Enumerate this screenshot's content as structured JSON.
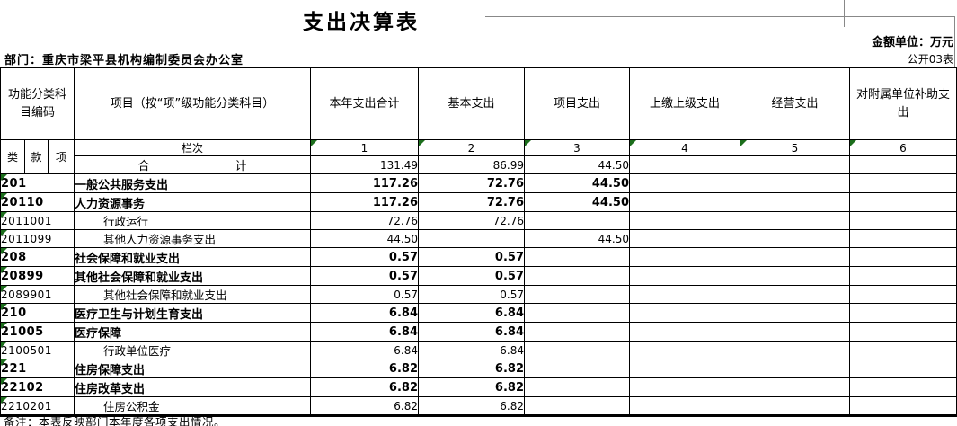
{
  "meta": {
    "title": "支出决算表",
    "unit_note": "金额单位：万元",
    "department_line": "部门：重庆市梁平县机构编制委员会办公室",
    "sheet_label": "公开03表",
    "footnote": "备注：本表反映部门本年度各项支出情况。"
  },
  "table": {
    "header": {
      "code_group": "功能分类科目编码",
      "code_cols": [
        "类",
        "款",
        "项"
      ],
      "item_col": "项目（按“项”级功能分类科目）",
      "amount_cols": [
        "本年支出合计",
        "基本支出",
        "项目支出",
        "上缴上级支出",
        "经营支出",
        "对附属单位补助支出"
      ],
      "lanci_label": "栏次",
      "col_numbers": [
        "1",
        "2",
        "3",
        "4",
        "5",
        "6"
      ]
    },
    "total_row": {
      "label_parts": [
        "合",
        "计"
      ],
      "values": [
        "131.49",
        "86.99",
        "44.50",
        "",
        "",
        ""
      ]
    },
    "rows": [
      {
        "code": "201",
        "name": "一般公共服务支出",
        "bold": true,
        "values": [
          "117.26",
          "72.76",
          "44.50",
          "",
          "",
          ""
        ]
      },
      {
        "code": "20110",
        "name": "人力资源事务",
        "bold": true,
        "values": [
          "117.26",
          "72.76",
          "44.50",
          "",
          "",
          ""
        ]
      },
      {
        "code": "2011001",
        "name": "行政运行",
        "bold": false,
        "values": [
          "72.76",
          "72.76",
          "",
          "",
          "",
          ""
        ]
      },
      {
        "code": "2011099",
        "name": "其他人力资源事务支出",
        "bold": false,
        "values": [
          "44.50",
          "",
          "44.50",
          "",
          "",
          ""
        ]
      },
      {
        "code": "208",
        "name": "社会保障和就业支出",
        "bold": true,
        "values": [
          "0.57",
          "0.57",
          "",
          "",
          "",
          ""
        ]
      },
      {
        "code": "20899",
        "name": "其他社会保障和就业支出",
        "bold": true,
        "values": [
          "0.57",
          "0.57",
          "",
          "",
          "",
          ""
        ]
      },
      {
        "code": "2089901",
        "name": "其他社会保障和就业支出",
        "bold": false,
        "values": [
          "0.57",
          "0.57",
          "",
          "",
          "",
          ""
        ]
      },
      {
        "code": "210",
        "name": "医疗卫生与计划生育支出",
        "bold": true,
        "values": [
          "6.84",
          "6.84",
          "",
          "",
          "",
          ""
        ]
      },
      {
        "code": "21005",
        "name": "医疗保障",
        "bold": true,
        "values": [
          "6.84",
          "6.84",
          "",
          "",
          "",
          ""
        ]
      },
      {
        "code": "2100501",
        "name": "行政单位医疗",
        "bold": false,
        "values": [
          "6.84",
          "6.84",
          "",
          "",
          "",
          ""
        ]
      },
      {
        "code": "221",
        "name": "住房保障支出",
        "bold": true,
        "values": [
          "6.82",
          "6.82",
          "",
          "",
          "",
          ""
        ]
      },
      {
        "code": "22102",
        "name": "住房改革支出",
        "bold": true,
        "values": [
          "6.82",
          "6.82",
          "",
          "",
          "",
          ""
        ]
      },
      {
        "code": "2210201",
        "name": "住房公积金",
        "bold": false,
        "values": [
          "6.82",
          "6.82",
          "",
          "",
          "",
          ""
        ]
      }
    ]
  },
  "colors": {
    "border": "#000000",
    "flag_triangle_green": "#1c6e1c",
    "background": "#ffffff"
  }
}
